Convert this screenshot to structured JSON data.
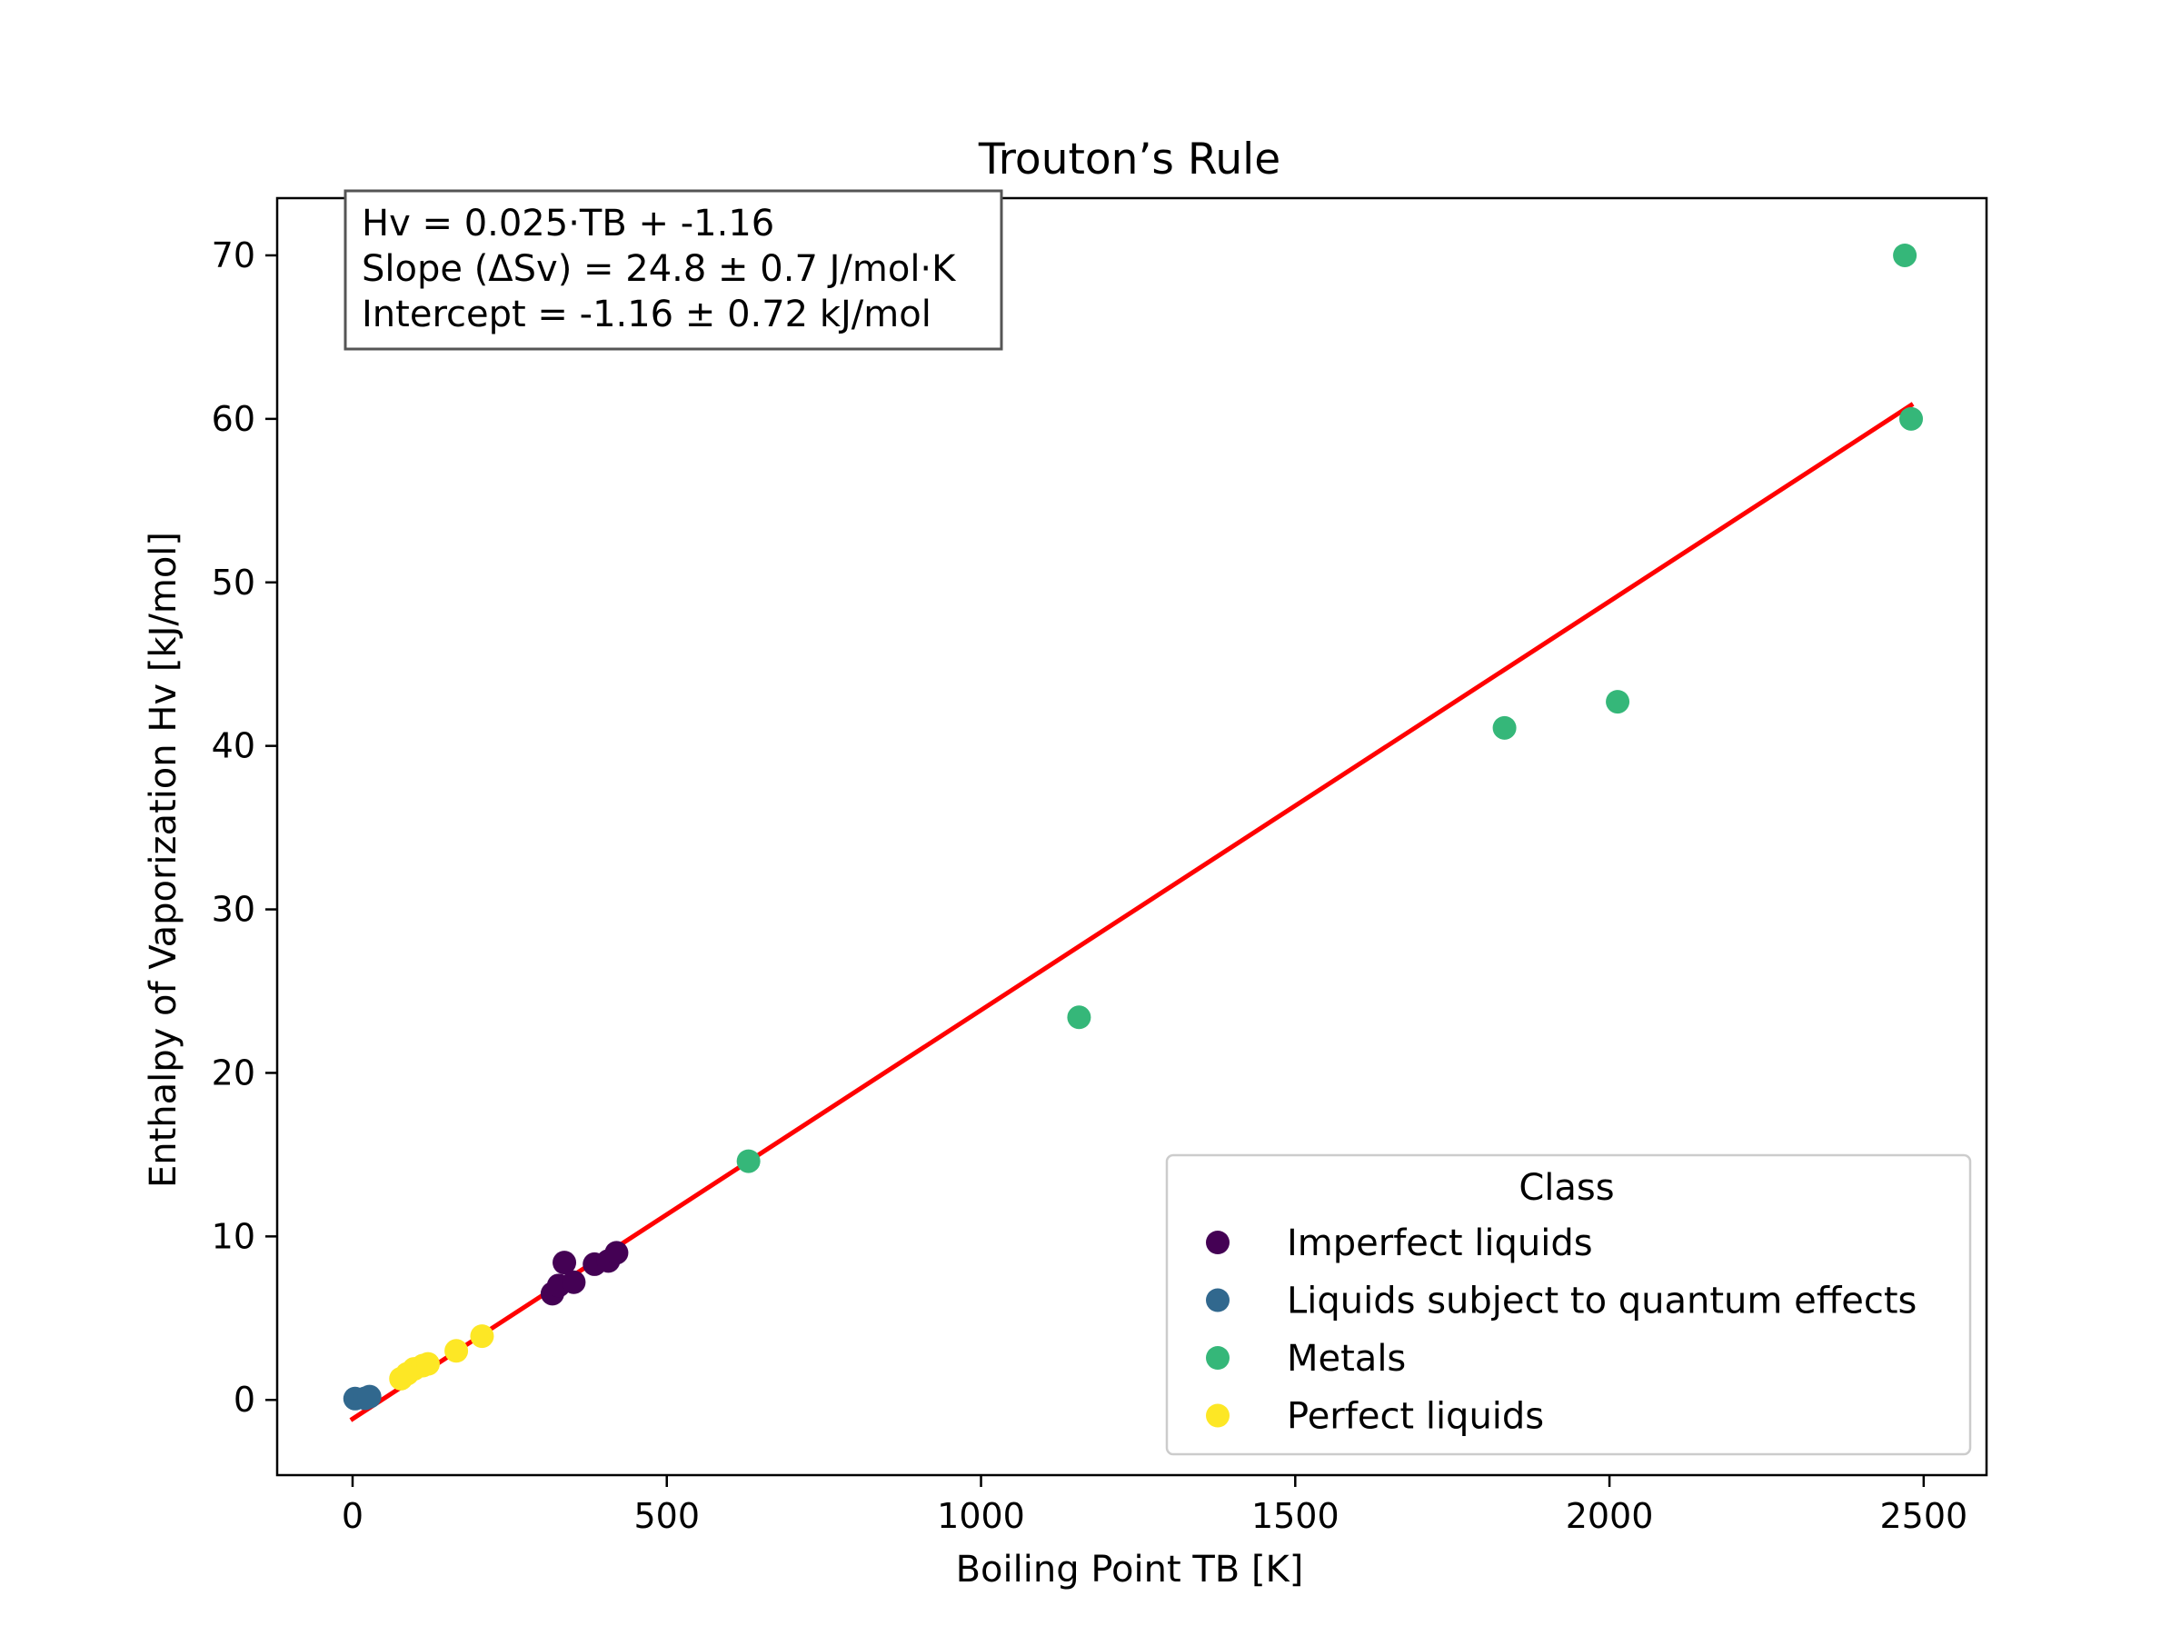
{
  "chart_data": {
    "type": "scatter",
    "title": "Trouton’s Rule",
    "xlabel": "Boiling Point TB [K]",
    "ylabel": "Enthalpy of Vaporization Hv [kJ/mol]",
    "xlim": [
      -120,
      2600
    ],
    "ylim": [
      -4.6,
      73.5
    ],
    "xticks": [
      0,
      500,
      1000,
      1500,
      2000,
      2500
    ],
    "yticks": [
      0,
      10,
      20,
      30,
      40,
      50,
      60,
      70
    ],
    "grid": false,
    "legend": {
      "title": "Class",
      "placement": "lower-right"
    },
    "series": [
      {
        "name": "Imperfect liquids",
        "color": "#440154",
        "points": [
          {
            "x": 318,
            "y": 6.5
          },
          {
            "x": 328,
            "y": 7.0
          },
          {
            "x": 337,
            "y": 8.4
          },
          {
            "x": 352,
            "y": 7.2
          },
          {
            "x": 385,
            "y": 8.3
          },
          {
            "x": 407,
            "y": 8.5
          },
          {
            "x": 420,
            "y": 9.0
          }
        ]
      },
      {
        "name": "Liquids subject to quantum effects",
        "color": "#31688e",
        "points": [
          {
            "x": 4,
            "y": 0.08
          },
          {
            "x": 20,
            "y": 0.1
          },
          {
            "x": 27,
            "y": 0.2
          }
        ]
      },
      {
        "name": "Metals",
        "color": "#35b779",
        "points": [
          {
            "x": 630,
            "y": 14.6
          },
          {
            "x": 1156,
            "y": 23.4
          },
          {
            "x": 1833,
            "y": 41.1
          },
          {
            "x": 2013,
            "y": 42.7
          },
          {
            "x": 2470,
            "y": 70.0
          },
          {
            "x": 2480,
            "y": 60.0
          }
        ]
      },
      {
        "name": "Perfect liquids",
        "color": "#fde725",
        "points": [
          {
            "x": 77,
            "y": 1.3
          },
          {
            "x": 87,
            "y": 1.6
          },
          {
            "x": 98,
            "y": 1.9
          },
          {
            "x": 112,
            "y": 2.1
          },
          {
            "x": 120,
            "y": 2.2
          },
          {
            "x": 165,
            "y": 3.0
          },
          {
            "x": 206,
            "y": 3.9
          }
        ]
      }
    ],
    "fit_line": {
      "color": "#ff0000",
      "slope": 0.025,
      "intercept": -1.16,
      "x_range": [
        0,
        2480
      ]
    },
    "annotation": [
      "Hv = 0.025·TB + -1.16",
      "Slope (ΔSv) = 24.8 ± 0.7 J/mol·K",
      "Intercept = -1.16 ± 0.72 kJ/mol"
    ]
  }
}
